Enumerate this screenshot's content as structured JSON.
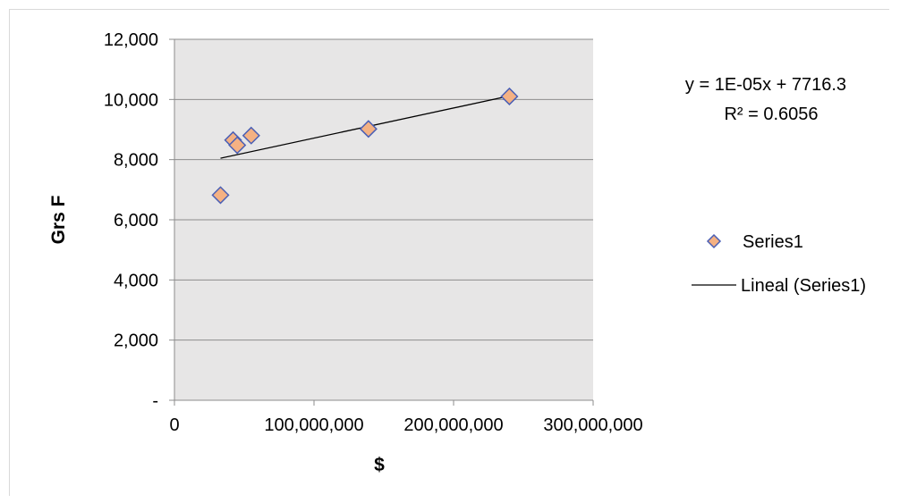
{
  "chart_data": {
    "type": "scatter",
    "title": "",
    "xlabel": "$",
    "ylabel": "Grs F",
    "xlim": [
      0,
      300000000
    ],
    "ylim": [
      0,
      12000
    ],
    "x_ticks": [
      0,
      100000000,
      200000000,
      300000000
    ],
    "x_tick_labels": [
      "0",
      "100,000,000",
      "200,000,000",
      "300,000,000"
    ],
    "y_ticks": [
      0,
      2000,
      4000,
      6000,
      8000,
      10000,
      12000
    ],
    "y_tick_labels": [
      "-",
      "2,000",
      "4,000",
      "6,000",
      "8,000",
      "10,000",
      "12,000"
    ],
    "grid": true,
    "legend_position": "right",
    "series": [
      {
        "name": "Series1",
        "marker": "diamond",
        "color": "#F4B183",
        "edge_color": "#4A5FB5",
        "x": [
          33000000,
          42000000,
          45000000,
          55000000,
          139000000,
          240000000
        ],
        "y": [
          6820,
          8650,
          8480,
          8800,
          9020,
          10100
        ]
      }
    ],
    "trendline": {
      "name": "Lineal (Series1)",
      "type": "linear",
      "slope": 1e-05,
      "intercept": 7716.3,
      "x_range": [
        33000000,
        240000000
      ],
      "color": "#000000",
      "equation": "y = 1E-05x + 7716.3",
      "r_squared": "R² = 0.6056"
    },
    "plot_background": "#E7E6E6",
    "gridline_color": "#8C8C8C"
  }
}
